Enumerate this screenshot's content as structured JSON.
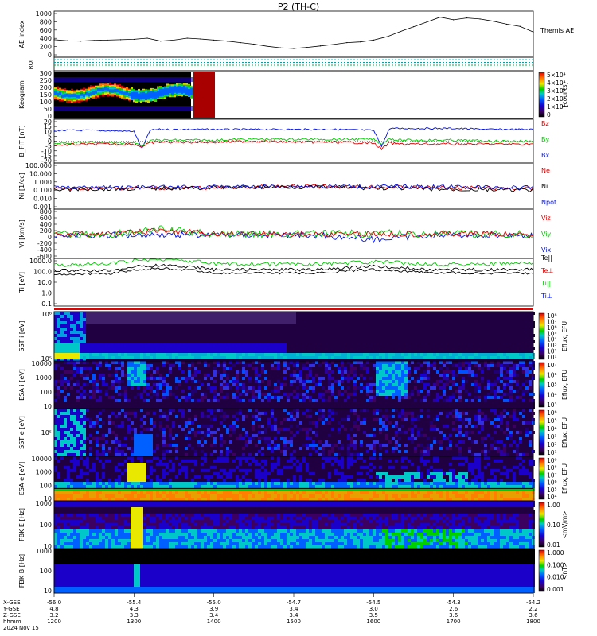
{
  "title": "P2 (TH-C)",
  "colors": {
    "black": "#000000",
    "red": "#e00000",
    "green": "#00c800",
    "blue": "#0010e0",
    "darkred": "#a80000"
  },
  "chart_data": [
    {
      "type": "line",
      "panel": "ae",
      "ylabel": "AE index",
      "yticks": [
        "1000",
        "800",
        "600",
        "400",
        "200",
        "0"
      ],
      "ylim": [
        -50,
        1050
      ],
      "legend": [
        "Themis AE"
      ],
      "x": [
        1200,
        1210,
        1220,
        1230,
        1240,
        1250,
        1300,
        1310,
        1320,
        1330,
        1340,
        1350,
        1400,
        1410,
        1420,
        1430,
        1440,
        1450,
        1500,
        1510,
        1520,
        1530,
        1540,
        1550,
        1600,
        1610,
        1620,
        1630,
        1640,
        1650,
        1700,
        1710,
        1720,
        1730,
        1740,
        1750,
        1800
      ],
      "series": [
        {
          "values": [
            340,
            310,
            300,
            320,
            330,
            340,
            350,
            380,
            300,
            330,
            380,
            360,
            330,
            300,
            260,
            220,
            160,
            120,
            100,
            130,
            170,
            210,
            260,
            280,
            330,
            420,
            560,
            690,
            820,
            950,
            880,
            930,
            900,
            840,
            760,
            700,
            550
          ]
        }
      ]
    },
    {
      "type": "heatmap",
      "panel": "roi",
      "ylabel": "ROI"
    },
    {
      "type": "heatmap",
      "panel": "keogram",
      "ylabel": "Keogram",
      "yticks": [
        "300",
        "250",
        "200",
        "150",
        "100",
        "50",
        "0"
      ],
      "colorbar_ticks": [
        "5×10⁴",
        "4×10⁴",
        "3×10⁴",
        "2×10⁴",
        "1×10⁴",
        "0"
      ],
      "colorbar_label": "[counts]"
    },
    {
      "type": "line",
      "panel": "bfield",
      "ylabel": "B_FIT [nT]",
      "yticks": [
        "20",
        "15",
        "10",
        "5",
        "0",
        "-5",
        "-10",
        "-15",
        "-20"
      ],
      "ylim": [
        -20,
        20
      ],
      "x": [
        1200,
        1250,
        1300,
        1310,
        1320,
        1330,
        1400,
        1450,
        1500,
        1550,
        1600,
        1610,
        1620,
        1630,
        1700,
        1750,
        1800
      ],
      "series": [
        {
          "name": "Bz",
          "values": [
            11,
            11,
            10,
            -8,
            11,
            12,
            12,
            12,
            12,
            12,
            11,
            -5,
            13,
            13,
            13,
            12,
            12
          ]
        },
        {
          "name": "By",
          "values": [
            -2,
            -1,
            -2,
            -4,
            0,
            1,
            1,
            2,
            2,
            2,
            2,
            -3,
            3,
            1,
            1,
            0,
            0
          ]
        },
        {
          "name": "Bx",
          "values": [
            -4,
            -3,
            -3,
            -6,
            -2,
            -1,
            -1,
            0,
            -1,
            -1,
            -2,
            -8,
            -2,
            -3,
            -3,
            -3,
            -3
          ]
        }
      ],
      "legend": [
        "Bz",
        "By",
        "Bx"
      ]
    },
    {
      "type": "line",
      "panel": "density",
      "ylabel": "Ni [1/cc]",
      "yticks": [
        "100.000",
        "10.000",
        "1.000",
        "0.100",
        "0.010",
        "0.001"
      ],
      "legend": [
        "Ne",
        "Ni",
        "Npot"
      ],
      "ylim": [
        0.001,
        100
      ],
      "series": [
        {
          "name": "Ne",
          "values": [
            0.15,
            0.18,
            0.2,
            0.3,
            0.25,
            0.2,
            0.15
          ]
        },
        {
          "name": "Ni",
          "values": [
            0.12,
            0.15,
            0.2,
            0.25,
            0.18,
            0.12,
            0.1
          ]
        },
        {
          "name": "Npot",
          "values": [
            0.2,
            0.22,
            0.25,
            0.3,
            0.28,
            0.25,
            0.2
          ]
        }
      ]
    },
    {
      "type": "line",
      "panel": "velocity",
      "ylabel": "Vi [km/s]",
      "yticks": [
        "800",
        "600",
        "400",
        "200",
        "0",
        "-200",
        "-400",
        "-600"
      ],
      "ylim": [
        -700,
        800
      ],
      "legend": [
        "Viz",
        "Viy",
        "Vix"
      ]
    },
    {
      "type": "line",
      "panel": "temperature",
      "ylabel": "Ti [eV]",
      "yticks": [
        "1000.0",
        "100.0",
        "10.0",
        "1.0",
        "0.1"
      ],
      "legend": [
        "Te||",
        "Te⊥",
        "Ti||",
        "Ti⊥"
      ]
    },
    {
      "type": "heatmap",
      "panel": "sst_i",
      "ylabel": "SST i [eV]",
      "yticks": [
        "10⁶",
        "10⁵"
      ],
      "colorbar_ticks": [
        "10⁸",
        "10⁷",
        "10⁶",
        "10⁵",
        "10⁴",
        "10³",
        "10²",
        "10¹"
      ],
      "colorbar_label": "Eflux, EFU"
    },
    {
      "type": "heatmap",
      "panel": "esa_i",
      "ylabel": "ESA i [eV]",
      "yticks": [
        "10000",
        "1000",
        "100",
        "10"
      ],
      "colorbar_ticks": [
        "10⁷",
        "10⁶",
        "10⁵",
        "10⁴",
        "10³"
      ],
      "colorbar_label": "Eflux, EFU"
    },
    {
      "type": "heatmap",
      "panel": "sst_e",
      "ylabel": "SST e [eV]",
      "yticks": [
        "10⁵"
      ],
      "colorbar_ticks": [
        "10⁶",
        "10⁵",
        "10⁴",
        "10³",
        "10²",
        "10¹"
      ],
      "colorbar_label": "Eflux, EFU"
    },
    {
      "type": "heatmap",
      "panel": "esa_e",
      "ylabel": "ESA e [eV]",
      "yticks": [
        "10000",
        "1000",
        "100",
        "10"
      ],
      "colorbar_ticks": [
        "10⁹",
        "10⁸",
        "10⁷",
        "10⁶",
        "10⁵",
        "10⁴"
      ],
      "colorbar_label": "Eflux, EFU"
    },
    {
      "type": "heatmap",
      "panel": "fbk_e",
      "ylabel": "FBK E [Hz]",
      "yticks": [
        "1000",
        "100",
        "10"
      ],
      "colorbar_ticks": [
        "1.00",
        "0.10",
        "0.01"
      ],
      "colorbar_label": "<mV/m>"
    },
    {
      "type": "heatmap",
      "panel": "fbk_b",
      "ylabel": "FBK B [Hz]",
      "yticks": [
        "1000",
        "100",
        "10"
      ],
      "colorbar_ticks": [
        "1.000",
        "0.100",
        "0.010",
        "0.001"
      ],
      "colorbar_label": "<nT>"
    }
  ],
  "xaxis": {
    "row_labels": [
      "X-GSE",
      "Y-GSE",
      "Z-GSE",
      "hhmm",
      "2024 Nov 15"
    ],
    "columns": [
      {
        "x": "-56.0",
        "y": "4.8",
        "z": "3.2",
        "t": "1200"
      },
      {
        "x": "-55.4",
        "y": "4.3",
        "z": "3.3",
        "t": "1300"
      },
      {
        "x": "-55.0",
        "y": "3.9",
        "z": "3.4",
        "t": "1400"
      },
      {
        "x": "-54.7",
        "y": "3.4",
        "z": "3.4",
        "t": "1500"
      },
      {
        "x": "-54.5",
        "y": "3.0",
        "z": "3.5",
        "t": "1600"
      },
      {
        "x": "-54.3",
        "y": "2.6",
        "z": "3.6",
        "t": "1700"
      },
      {
        "x": "-54.2",
        "y": "2.2",
        "z": "3.6",
        "t": "1800"
      }
    ]
  }
}
